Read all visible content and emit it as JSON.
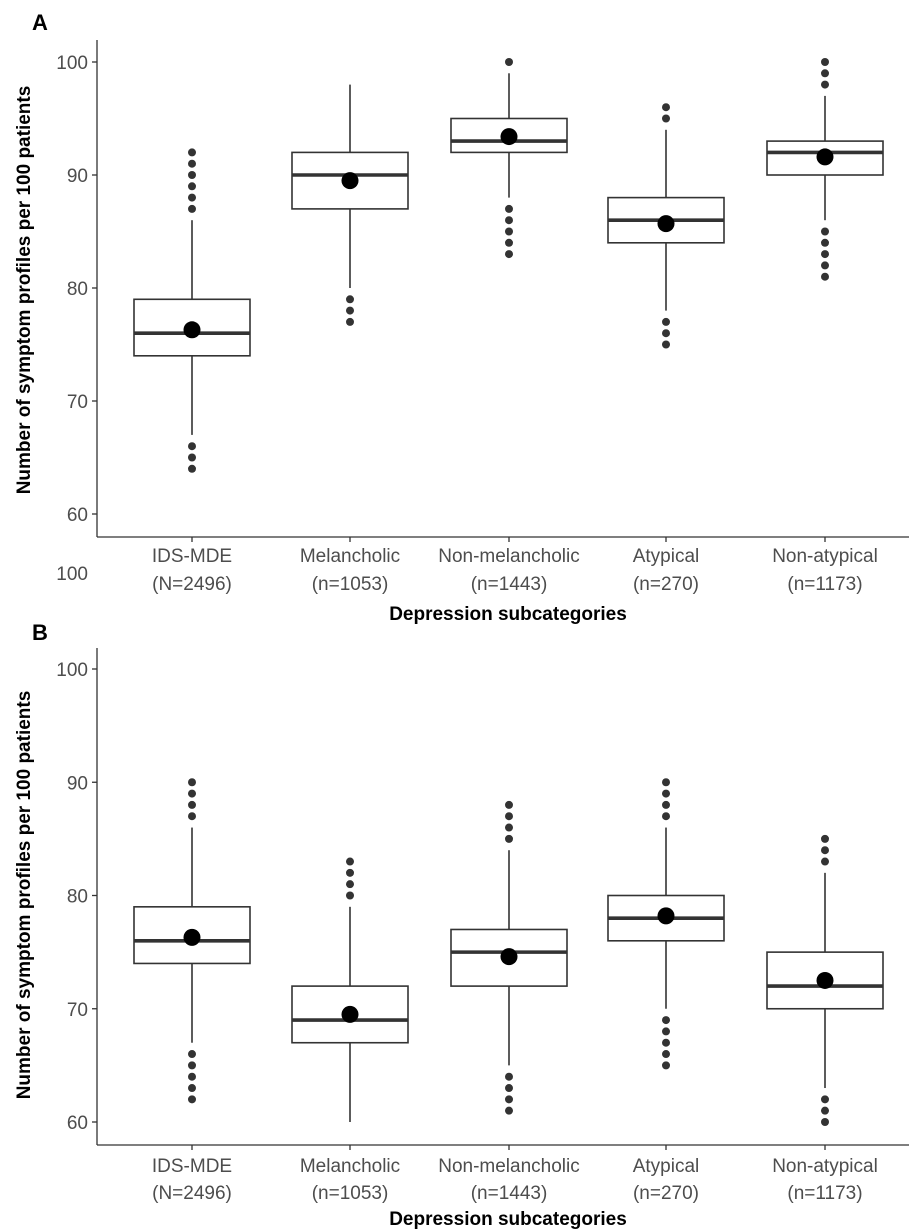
{
  "chart_data": [
    {
      "type": "box",
      "panel": "A",
      "xlabel": "Depression subcategories",
      "ylabel": "Number of symptom profiles per 100 patients",
      "ylim": [
        58,
        102
      ],
      "yticks": [
        60,
        70,
        80,
        90,
        100
      ],
      "extra_tick_label": "100",
      "grid": false,
      "categories": [
        {
          "name": "IDS-MDE",
          "n": "(N=2496)"
        },
        {
          "name": "Melancholic",
          "n": "(n=1053)"
        },
        {
          "name": "Non-melancholic",
          "n": "(n=1443)"
        },
        {
          "name": "Atypical",
          "n": "(n=270)"
        },
        {
          "name": "Non-atypical",
          "n": "(n=1173)"
        }
      ],
      "boxes": [
        {
          "whisker_low": 67,
          "q1": 74,
          "median": 76,
          "q3": 79,
          "whisker_high": 86,
          "mean": 76.3,
          "outliers": [
            64,
            65,
            66,
            87,
            88,
            89,
            90,
            91,
            92
          ]
        },
        {
          "whisker_low": 80,
          "q1": 87,
          "median": 90,
          "q3": 92,
          "whisker_high": 98,
          "mean": 89.5,
          "outliers": [
            77,
            78,
            79
          ]
        },
        {
          "whisker_low": 88,
          "q1": 92,
          "median": 93,
          "q3": 95,
          "whisker_high": 99,
          "mean": 93.4,
          "outliers": [
            83,
            84,
            85,
            86,
            87,
            100
          ]
        },
        {
          "whisker_low": 78,
          "q1": 84,
          "median": 86,
          "q3": 88,
          "whisker_high": 94,
          "mean": 85.7,
          "outliers": [
            75,
            76,
            77,
            95,
            96
          ]
        },
        {
          "whisker_low": 86,
          "q1": 90,
          "median": 92,
          "q3": 93,
          "whisker_high": 97,
          "mean": 91.6,
          "outliers": [
            81,
            82,
            83,
            84,
            85,
            98,
            99,
            100
          ]
        }
      ]
    },
    {
      "type": "box",
      "panel": "B",
      "xlabel": "Depression subcategories",
      "ylabel": "Number of symptom profiles per 100 patients",
      "ylim": [
        59,
        102
      ],
      "yticks": [
        60,
        70,
        80,
        90,
        100
      ],
      "grid": false,
      "categories": [
        {
          "name": "IDS-MDE",
          "n": "(N=2496)"
        },
        {
          "name": "Melancholic",
          "n": "(n=1053)"
        },
        {
          "name": "Non-melancholic",
          "n": "(n=1443)"
        },
        {
          "name": "Atypical",
          "n": "(n=270)"
        },
        {
          "name": "Non-atypical",
          "n": "(n=1173)"
        }
      ],
      "boxes": [
        {
          "whisker_low": 67,
          "q1": 74,
          "median": 76,
          "q3": 79,
          "whisker_high": 86,
          "mean": 76.3,
          "outliers": [
            62,
            63,
            64,
            65,
            66,
            87,
            88,
            89,
            90
          ]
        },
        {
          "whisker_low": 60,
          "q1": 67,
          "median": 69,
          "q3": 72,
          "whisker_high": 79,
          "mean": 69.5,
          "outliers": [
            80,
            81,
            82,
            83
          ]
        },
        {
          "whisker_low": 65,
          "q1": 72,
          "median": 75,
          "q3": 77,
          "whisker_high": 84,
          "mean": 74.6,
          "outliers": [
            61,
            62,
            63,
            64,
            85,
            86,
            87,
            88
          ]
        },
        {
          "whisker_low": 70,
          "q1": 76,
          "median": 78,
          "q3": 80,
          "whisker_high": 86,
          "mean": 78.2,
          "outliers": [
            65,
            66,
            67,
            68,
            69,
            87,
            88,
            89,
            90
          ]
        },
        {
          "whisker_low": 63,
          "q1": 70,
          "median": 72,
          "q3": 75,
          "whisker_high": 82,
          "mean": 72.5,
          "outliers": [
            60,
            61,
            62,
            83,
            84,
            85
          ]
        }
      ]
    }
  ]
}
